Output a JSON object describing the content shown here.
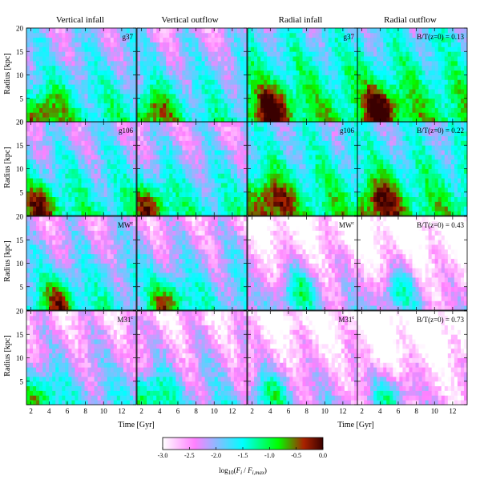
{
  "figure": {
    "columns": [
      "Vertical infall",
      "Vertical outflow",
      "Radial infall",
      "Radial outflow"
    ],
    "rows": [
      {
        "galaxy": "g37",
        "galaxy_sup": "",
        "bt_label": "B/T(z=0) = 0.13",
        "bt": 0.13
      },
      {
        "galaxy": "g106",
        "galaxy_sup": "",
        "bt_label": "B/T(z=0) = 0.22",
        "bt": 0.22
      },
      {
        "galaxy": "MW",
        "galaxy_sup": "c",
        "bt_label": "B/T(z=0) = 0.43",
        "bt": 0.43
      },
      {
        "galaxy": "M31",
        "galaxy_sup": "c",
        "bt_label": "B/T(z=0) = 0.73",
        "bt": 0.73
      }
    ],
    "colors": {
      "scale": [
        "#ffffff",
        "#ff80ff",
        "#00ffff",
        "#00ff00",
        "#aa2200",
        "#3a0000"
      ],
      "frame": "#000000"
    }
  },
  "chart_data": {
    "type": "heatmap",
    "title": "",
    "xlabel": "Time [Gyr]",
    "ylabel": "Radius [kpc]",
    "xlim": [
      1.5,
      13.6
    ],
    "ylim": [
      0,
      20
    ],
    "xticks": [
      2,
      4,
      6,
      8,
      10,
      12
    ],
    "yticks": [
      0,
      5,
      10,
      15,
      20
    ],
    "grid": false,
    "colorbar": {
      "label": "log10(Fi / Fi,max)",
      "range": [
        -3.0,
        0.0
      ],
      "ticks": [
        "-3.0",
        "-2.5",
        "-2.0",
        "-1.5",
        "-1.0",
        "-0.5",
        "0.0"
      ]
    },
    "panels": [
      {
        "row": "g37",
        "column": "Vertical infall",
        "peak_radius": 2,
        "peak_time": 3.5,
        "mean_level": -1.3
      },
      {
        "row": "g37",
        "column": "Vertical outflow",
        "peak_radius": 2,
        "peak_time": 3.5,
        "mean_level": -1.4
      },
      {
        "row": "g37",
        "column": "Radial infall",
        "peak_radius": 3,
        "peak_time": 4,
        "mean_level": -0.9
      },
      {
        "row": "g37",
        "column": "Radial outflow",
        "peak_radius": 3,
        "peak_time": 4,
        "mean_level": -0.9
      },
      {
        "row": "g106",
        "column": "Vertical infall",
        "peak_radius": 2,
        "peak_time": 3,
        "mean_level": -1.3
      },
      {
        "row": "g106",
        "column": "Vertical outflow",
        "peak_radius": 2,
        "peak_time": 3,
        "mean_level": -1.4
      },
      {
        "row": "g106",
        "column": "Radial infall",
        "peak_radius": 3,
        "peak_time": 4,
        "mean_level": -1.0
      },
      {
        "row": "g106",
        "column": "Radial outflow",
        "peak_radius": 3,
        "peak_time": 4,
        "mean_level": -1.0
      },
      {
        "row": "MWc",
        "column": "Vertical infall",
        "peak_radius": 2,
        "peak_time": 5,
        "mean_level": -1.5
      },
      {
        "row": "MWc",
        "column": "Vertical outflow",
        "peak_radius": 2,
        "peak_time": 5,
        "mean_level": -1.6
      },
      {
        "row": "MWc",
        "column": "Radial infall",
        "peak_radius": 4,
        "peak_time": 7,
        "mean_level": -2.2
      },
      {
        "row": "MWc",
        "column": "Radial outflow",
        "peak_radius": 4,
        "peak_time": 6,
        "mean_level": -2.4
      },
      {
        "row": "M31c",
        "column": "Vertical infall",
        "peak_radius": 2,
        "peak_time": 3,
        "mean_level": -1.8
      },
      {
        "row": "M31c",
        "column": "Vertical outflow",
        "peak_radius": 2,
        "peak_time": 3,
        "mean_level": -1.9
      },
      {
        "row": "M31c",
        "column": "Radial infall",
        "peak_radius": 2,
        "peak_time": 4,
        "mean_level": -2.2
      },
      {
        "row": "M31c",
        "column": "Radial outflow",
        "peak_radius": 2,
        "peak_time": 5,
        "mean_level": -2.5
      }
    ]
  }
}
